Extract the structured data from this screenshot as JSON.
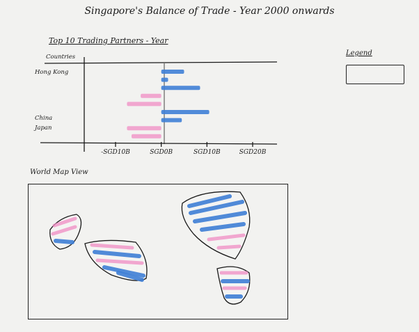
{
  "page": {
    "title": "Singapore's Balance of Trade - Year 2000 onwards",
    "subtitle": "Top 10 Trading Partners - Year",
    "legend_title": "Legend",
    "map_title": "World Map View"
  },
  "colors": {
    "positive": "#3f7fd6",
    "negative": "#f08cc4",
    "ink": "#1a1a1a"
  },
  "chart_data": {
    "type": "bar",
    "orientation": "horizontal",
    "ylabel": "Countries",
    "row_labels": [
      "Hong Kong",
      "China",
      "Japan"
    ],
    "x_ticks": [
      "-SGD10B",
      "SGD0B",
      "SGD10B",
      "SGD20B"
    ],
    "xlim": [
      -10,
      20
    ],
    "values": [
      5,
      1.5,
      8.5,
      -4.5,
      -7.5,
      10.5,
      4.5,
      -7.5,
      -6.5
    ]
  }
}
